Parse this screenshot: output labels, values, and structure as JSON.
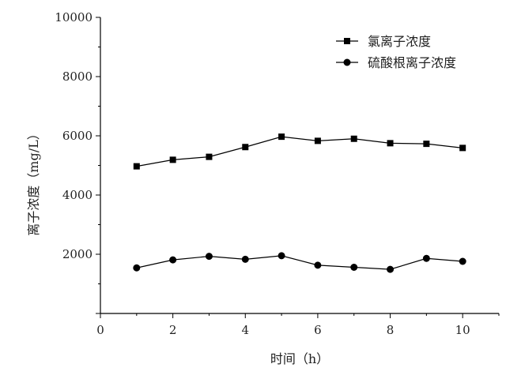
{
  "chart_data": {
    "type": "line",
    "xlabel": "时间（h）",
    "ylabel": "离子浓度（mg/L）",
    "xlim": [
      0,
      11
    ],
    "ylim": [
      0,
      10000
    ],
    "x_ticks": [
      "0",
      "2",
      "4",
      "6",
      "8",
      "10"
    ],
    "y_ticks": [
      "2000",
      "4000",
      "6000",
      "8000",
      "10000"
    ],
    "grid": false,
    "legend_position": "top-right",
    "x": [
      1,
      2,
      3,
      4,
      5,
      6,
      7,
      8,
      9,
      10
    ],
    "series": [
      {
        "name": "氯离子浓度",
        "marker": "square",
        "color": "#000000",
        "values": [
          4970,
          5190,
          5290,
          5620,
          5970,
          5830,
          5900,
          5750,
          5730,
          5590
        ]
      },
      {
        "name": "硫酸根离子浓度",
        "marker": "circle",
        "color": "#000000",
        "values": [
          1540,
          1810,
          1930,
          1830,
          1950,
          1630,
          1560,
          1490,
          1860,
          1760
        ]
      }
    ]
  }
}
